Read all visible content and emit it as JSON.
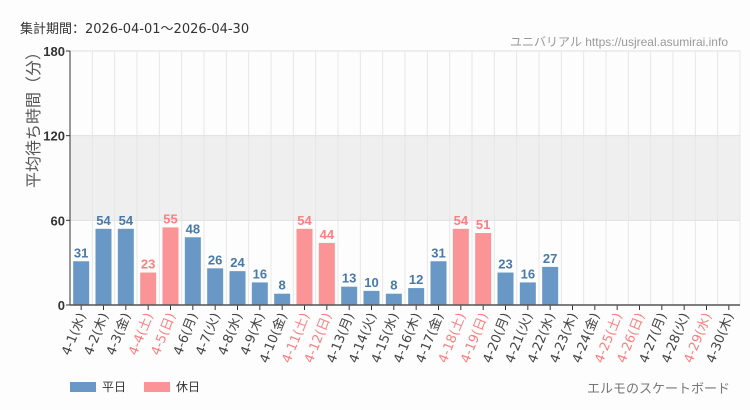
{
  "header": {
    "period": "集計期間：2026-04-01～2026-04-30",
    "site": "ユニバリアル  https://usjreal.asumirai.info"
  },
  "footer": {
    "credit": "エルモのスケートボード"
  },
  "colors": {
    "weekday": "#6a98c6",
    "holiday": "#fb9496",
    "holiday_label": "#fb7f82",
    "band": "#efefef"
  },
  "chart_data": {
    "type": "bar",
    "ylabel": "平均待ち時間（分）",
    "ylim": [
      0,
      180
    ],
    "yticks": [
      0,
      60,
      120,
      180
    ],
    "shaded_band": [
      60,
      120
    ],
    "grid": true,
    "legend": {
      "placement": "bottom-left",
      "entries": [
        {
          "name": "平日",
          "color": "#6a98c6"
        },
        {
          "name": "休日",
          "color": "#fb9496"
        }
      ]
    },
    "categories": [
      "4-1(水)",
      "4-2(木)",
      "4-3(金)",
      "4-4(土)",
      "4-5(日)",
      "4-6(月)",
      "4-7(火)",
      "4-8(水)",
      "4-9(木)",
      "4-10(金)",
      "4-11(土)",
      "4-12(日)",
      "4-13(月)",
      "4-14(火)",
      "4-15(水)",
      "4-16(木)",
      "4-17(金)",
      "4-18(土)",
      "4-19(日)",
      "4-20(月)",
      "4-21(火)",
      "4-22(水)",
      "4-23(木)",
      "4-24(金)",
      "4-25(土)",
      "4-26(日)",
      "4-27(月)",
      "4-28(火)",
      "4-29(水)",
      "4-30(木)"
    ],
    "holiday": [
      false,
      false,
      false,
      true,
      true,
      false,
      false,
      false,
      false,
      false,
      true,
      true,
      false,
      false,
      false,
      false,
      false,
      true,
      true,
      false,
      false,
      false,
      false,
      false,
      true,
      true,
      false,
      false,
      true,
      false
    ],
    "values": [
      31,
      54,
      54,
      23,
      55,
      48,
      26,
      24,
      16,
      8,
      54,
      44,
      13,
      10,
      8,
      12,
      31,
      54,
      51,
      23,
      16,
      27,
      null,
      null,
      null,
      null,
      null,
      null,
      null,
      null
    ]
  }
}
